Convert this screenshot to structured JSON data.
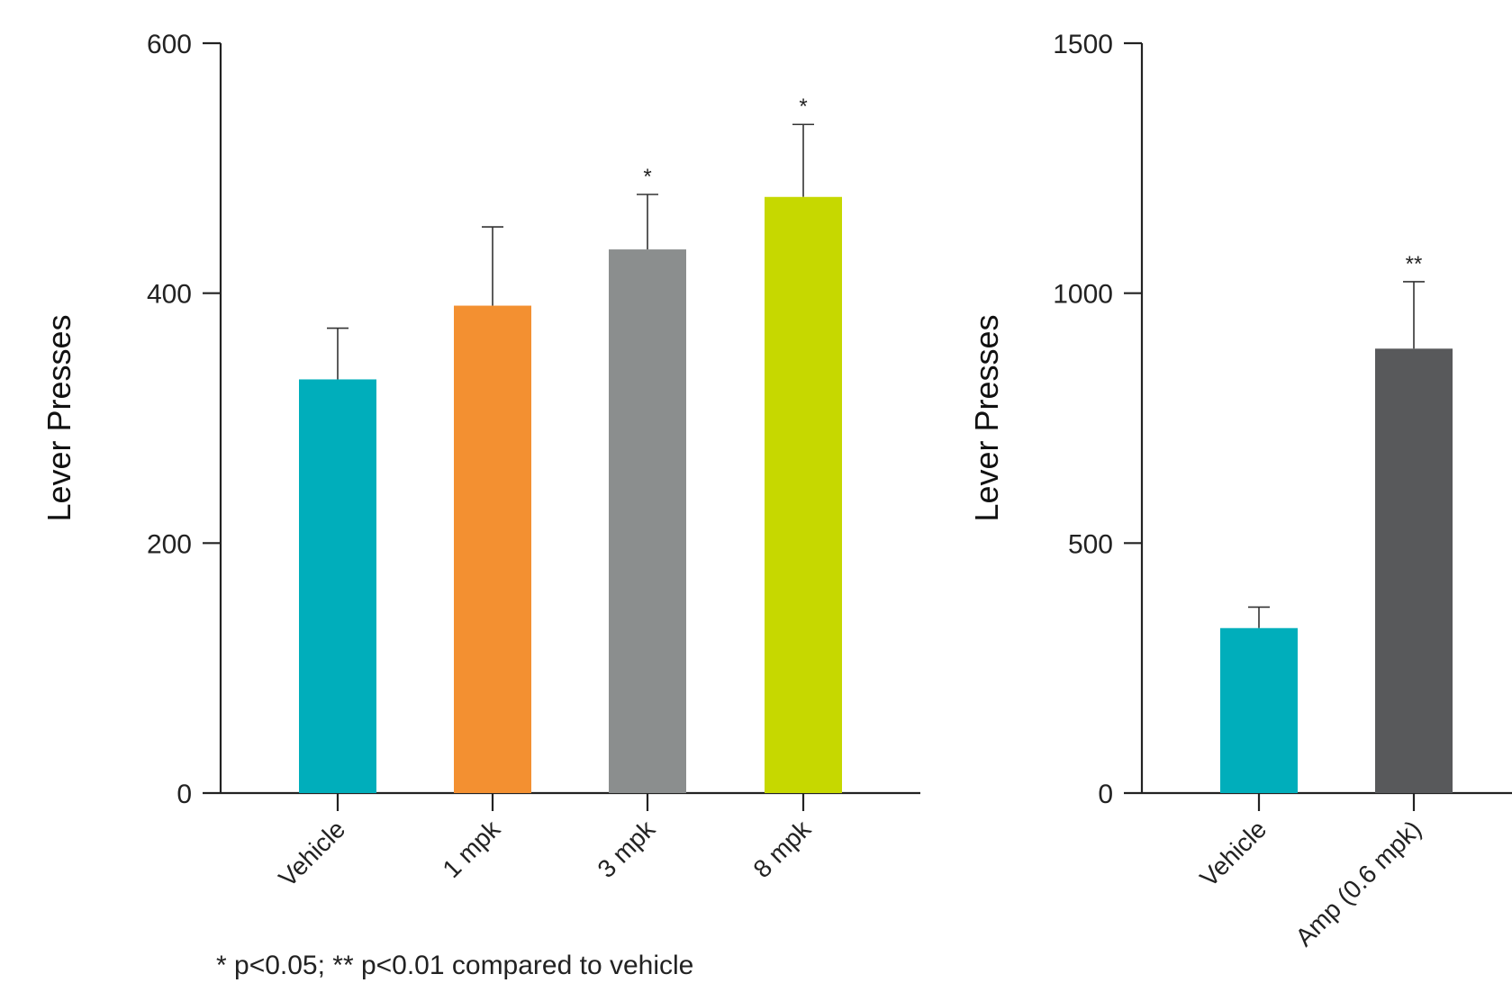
{
  "chart_data": [
    {
      "type": "bar",
      "ylabel": "Lever Presses",
      "ylim": [
        0,
        600
      ],
      "yticks": [
        0,
        200,
        400,
        600
      ],
      "categories": [
        "Vehicle",
        "1 mpk",
        "3 mpk",
        "8 mpk"
      ],
      "values": [
        331,
        390,
        435,
        477
      ],
      "errors": [
        41,
        63,
        44,
        58
      ],
      "significance": [
        "",
        "",
        "*",
        "*"
      ],
      "colors": [
        "#00aebb",
        "#f39031",
        "#8b8e8e",
        "#c6d800"
      ]
    },
    {
      "type": "bar",
      "ylabel": "Lever Presses",
      "ylim": [
        0,
        1500
      ],
      "yticks": [
        0,
        500,
        1000,
        1500
      ],
      "categories": [
        "Vehicle",
        "Amp (0.6 mpk)"
      ],
      "values": [
        330,
        889
      ],
      "errors": [
        42,
        134
      ],
      "significance": [
        "",
        "**"
      ],
      "colors": [
        "#00aebb",
        "#58595b"
      ]
    }
  ],
  "footnote": "* p<0.05; ** p<0.01 compared to vehicle"
}
